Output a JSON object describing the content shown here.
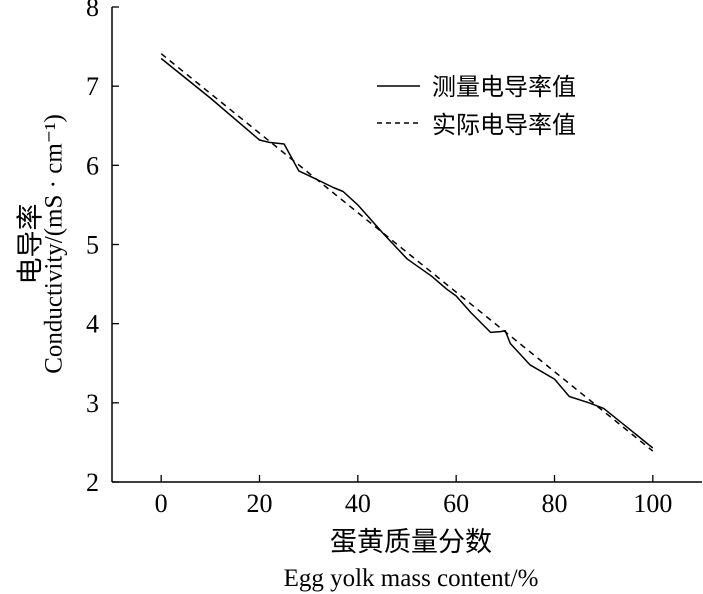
{
  "chart_data": {
    "type": "line",
    "xlim": [
      -10,
      110
    ],
    "ylim": [
      2,
      8
    ],
    "x_ticks": [
      "0",
      "20",
      "40",
      "60",
      "80",
      "100"
    ],
    "y_ticks": [
      "2",
      "3",
      "4",
      "5",
      "6",
      "7",
      "8"
    ],
    "xlabel_cn": "蛋黄质量分数",
    "xlabel_en": "Egg yolk mass content/%",
    "ylabel_cn": "电导率",
    "ylabel_en": "Conductivity/(mS · cm⁻¹)",
    "legend_position": "top-right",
    "grid": false,
    "series": [
      {
        "name": "测量电导率值",
        "style": "solid",
        "color": "#000000",
        "x": [
          0,
          10,
          20,
          22,
          25,
          28,
          30,
          35,
          37,
          40,
          45,
          50,
          55,
          58,
          60,
          63,
          67,
          69,
          70,
          71,
          75,
          80,
          83,
          87,
          90,
          95,
          100
        ],
        "y": [
          7.35,
          6.85,
          6.32,
          6.29,
          6.27,
          5.93,
          5.87,
          5.72,
          5.67,
          5.5,
          5.15,
          4.82,
          4.6,
          4.44,
          4.35,
          4.14,
          3.89,
          3.9,
          3.91,
          3.75,
          3.48,
          3.3,
          3.08,
          3.0,
          2.93,
          2.68,
          2.43
        ]
      },
      {
        "name": "实际电导率值",
        "style": "dashed",
        "color": "#000000",
        "x": [
          0,
          100
        ],
        "y": [
          7.41,
          2.39
        ]
      }
    ]
  }
}
